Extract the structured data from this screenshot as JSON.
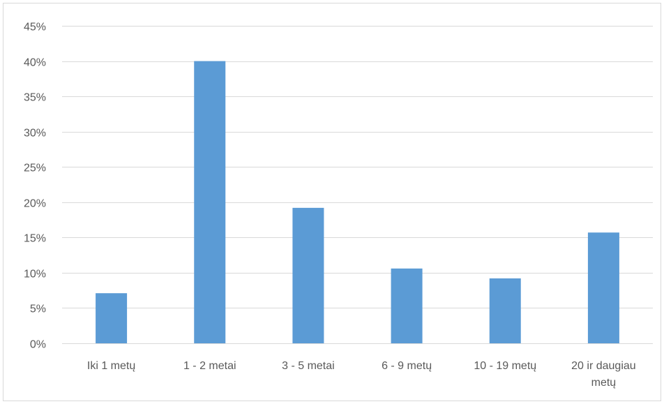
{
  "chart_data": {
    "type": "bar",
    "categories": [
      [
        "Iki 1 metų"
      ],
      [
        "1 - 2 metai"
      ],
      [
        "3 - 5 metai"
      ],
      [
        "6 - 9 metų"
      ],
      [
        "10 - 19 metų"
      ],
      [
        "20 ir daugiau",
        "metų"
      ]
    ],
    "values": [
      7.1,
      40.0,
      19.2,
      10.6,
      9.2,
      15.7
    ],
    "ylim": [
      0,
      45
    ],
    "yticks": [
      0,
      5,
      10,
      15,
      20,
      25,
      30,
      35,
      40,
      45
    ],
    "ytick_labels": [
      "0%",
      "5%",
      "10%",
      "15%",
      "20%",
      "25%",
      "30%",
      "35%",
      "40%",
      "45%"
    ],
    "grid": true,
    "legend": "none",
    "bar_color": "#5b9bd5",
    "title": "",
    "xlabel": "",
    "ylabel": ""
  }
}
